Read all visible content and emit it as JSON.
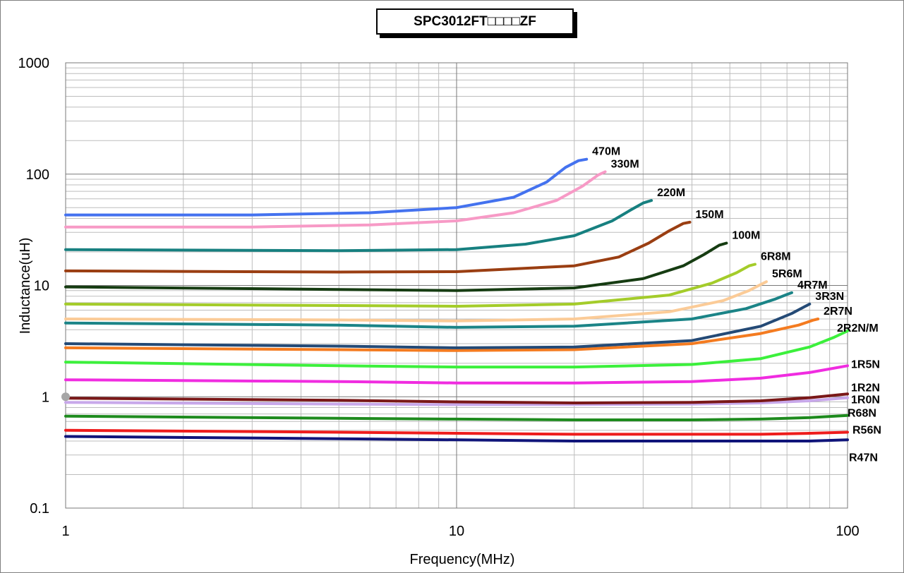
{
  "chart_data": {
    "type": "line",
    "title": "SPC3012FT□□□□ZF",
    "xlabel": "Frequency(MHz)",
    "ylabel": "Inductance(uH)",
    "x_scale": "log",
    "y_scale": "log",
    "xlim": [
      1,
      100
    ],
    "ylim": [
      0.1,
      1000
    ],
    "x_ticks": [
      "1",
      "10",
      "100"
    ],
    "y_ticks": [
      "0.1",
      "1",
      "10",
      "100",
      "1000"
    ],
    "grid": true,
    "legend": "inline labels at curve ends",
    "series": [
      {
        "name": "470M",
        "color": "#4472ef",
        "x": [
          1,
          3,
          6,
          10,
          14,
          17,
          19,
          20.5,
          21.5
        ],
        "y": [
          43,
          43,
          45,
          50,
          62,
          85,
          115,
          132,
          136
        ]
      },
      {
        "name": "330M",
        "color": "#f79ac6",
        "x": [
          1,
          3,
          6,
          10,
          14,
          18,
          21,
          23,
          24
        ],
        "y": [
          33.5,
          33.5,
          35,
          38,
          45,
          58,
          78,
          98,
          105
        ]
      },
      {
        "name": "220M",
        "color": "#178080",
        "x": [
          1,
          5,
          10,
          15,
          20,
          25,
          28,
          30,
          31.5
        ],
        "y": [
          21,
          20.5,
          21,
          23.5,
          28,
          38,
          48,
          55,
          58
        ]
      },
      {
        "name": "150M",
        "color": "#9a3e12",
        "x": [
          1,
          5,
          10,
          20,
          26,
          31,
          35,
          38,
          39.5
        ],
        "y": [
          13.5,
          13.2,
          13.3,
          15,
          18,
          24,
          31,
          36,
          37
        ]
      },
      {
        "name": "100M",
        "color": "#163c12",
        "x": [
          1,
          5,
          10,
          20,
          30,
          38,
          43,
          47,
          49
        ],
        "y": [
          9.7,
          9.2,
          9,
          9.5,
          11.5,
          15,
          19,
          23,
          24
        ]
      },
      {
        "name": "6R8M",
        "color": "#a4cc2a",
        "x": [
          1,
          5,
          10,
          20,
          35,
          45,
          52,
          56,
          58
        ],
        "y": [
          6.8,
          6.6,
          6.5,
          6.8,
          8.2,
          10.5,
          13,
          15,
          15.5
        ]
      },
      {
        "name": "5R6M",
        "color": "#fbcb97",
        "x": [
          1,
          5,
          10,
          20,
          35,
          48,
          56,
          60,
          62
        ],
        "y": [
          5,
          4.9,
          4.8,
          5,
          5.8,
          7.3,
          9,
          10.2,
          10.8
        ]
      },
      {
        "name": "4R7M",
        "color": "#1b8487",
        "x": [
          1,
          5,
          10,
          20,
          40,
          55,
          65,
          70,
          72
        ],
        "y": [
          4.6,
          4.4,
          4.2,
          4.3,
          5,
          6.2,
          7.5,
          8.3,
          8.6
        ]
      },
      {
        "name": "3R3N",
        "color": "#244a76",
        "x": [
          1,
          5,
          10,
          20,
          40,
          60,
          72,
          78,
          80
        ],
        "y": [
          3,
          2.85,
          2.75,
          2.8,
          3.2,
          4.3,
          5.6,
          6.5,
          6.8
        ]
      },
      {
        "name": "2R7N",
        "color": "#f47b20",
        "x": [
          1,
          5,
          10,
          20,
          40,
          60,
          75,
          82,
          84
        ],
        "y": [
          2.75,
          2.65,
          2.6,
          2.65,
          3,
          3.7,
          4.4,
          4.9,
          5
        ]
      },
      {
        "name": "2R2N/M",
        "color": "#3cf03c",
        "x": [
          1,
          5,
          10,
          20,
          40,
          60,
          80,
          92,
          100
        ],
        "y": [
          2.05,
          1.9,
          1.85,
          1.85,
          1.95,
          2.2,
          2.8,
          3.4,
          3.9
        ]
      },
      {
        "name": "1R5N",
        "color": "#f02ce0",
        "x": [
          1,
          5,
          10,
          20,
          40,
          60,
          80,
          100
        ],
        "y": [
          1.42,
          1.37,
          1.33,
          1.33,
          1.37,
          1.47,
          1.65,
          1.9
        ]
      },
      {
        "name": "1R2N",
        "color": "#7a1818",
        "x": [
          1,
          5,
          10,
          20,
          40,
          60,
          80,
          100
        ],
        "y": [
          0.97,
          0.93,
          0.9,
          0.88,
          0.89,
          0.92,
          0.98,
          1.06
        ]
      },
      {
        "name": "1R0N",
        "color": "#c8a8ea",
        "x": [
          1,
          5,
          10,
          20,
          40,
          60,
          80,
          100
        ],
        "y": [
          0.89,
          0.86,
          0.85,
          0.85,
          0.86,
          0.88,
          0.92,
          0.98
        ]
      },
      {
        "name": "R68N",
        "color": "#1e8b1e",
        "x": [
          1,
          5,
          10,
          20,
          40,
          60,
          80,
          100
        ],
        "y": [
          0.67,
          0.64,
          0.63,
          0.62,
          0.62,
          0.63,
          0.65,
          0.68
        ]
      },
      {
        "name": "R56N",
        "color": "#ee1c1c",
        "x": [
          1,
          5,
          10,
          20,
          40,
          60,
          80,
          100
        ],
        "y": [
          0.5,
          0.48,
          0.47,
          0.46,
          0.46,
          0.46,
          0.47,
          0.48
        ]
      },
      {
        "name": "R47N",
        "color": "#10157a",
        "x": [
          1,
          5,
          10,
          20,
          40,
          60,
          80,
          100
        ],
        "y": [
          0.44,
          0.42,
          0.41,
          0.4,
          0.4,
          0.4,
          0.4,
          0.41
        ]
      }
    ]
  }
}
